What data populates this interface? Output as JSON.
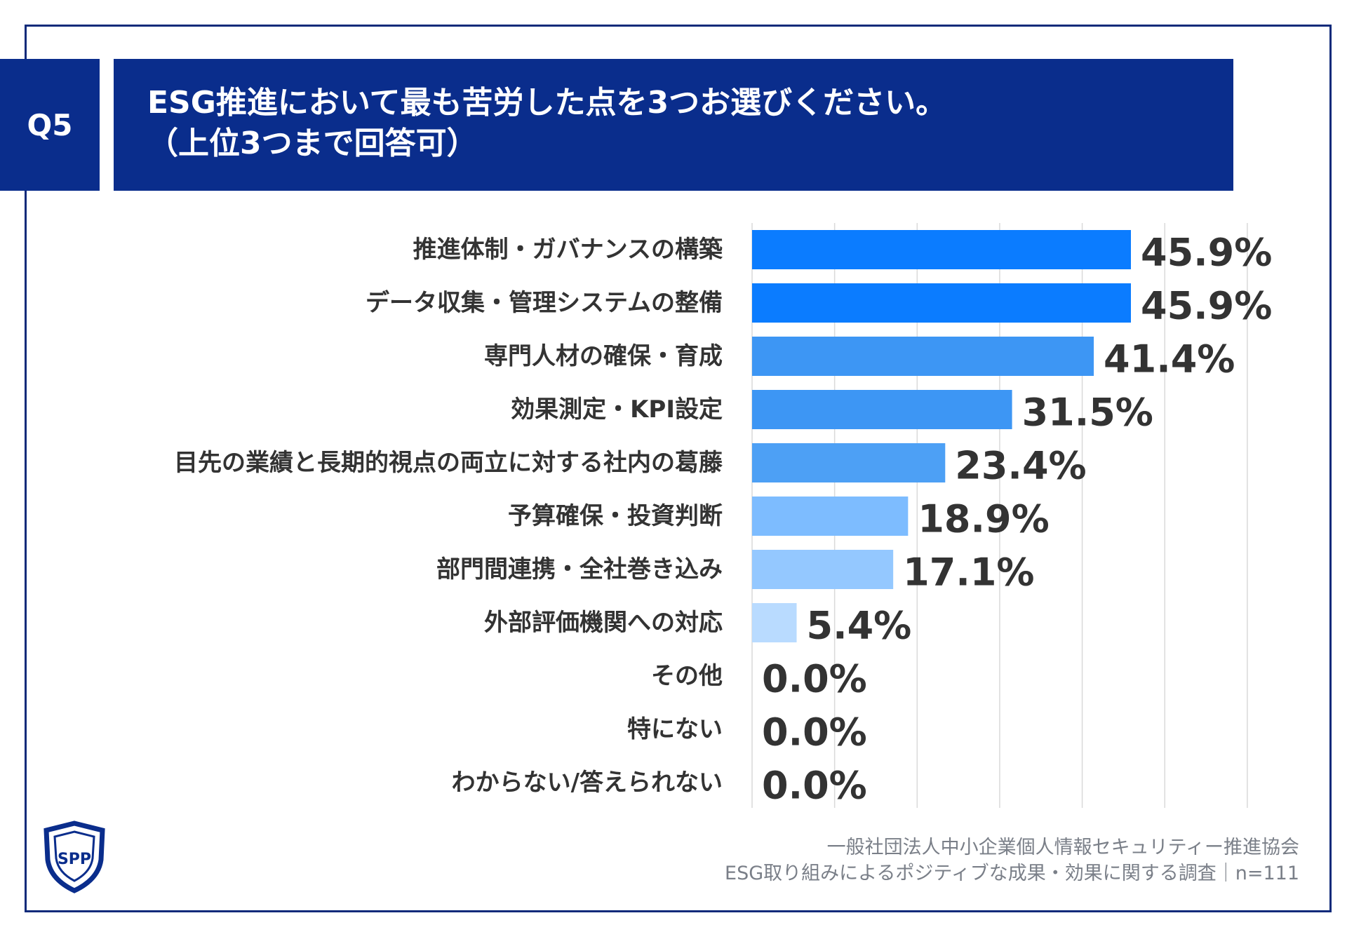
{
  "question": {
    "badge": "Q5",
    "line1": "ESG推進において最も苦労した点を3つお選びください。",
    "line2": "（上位3つまで回答可）"
  },
  "footer": {
    "org": "一般社団法人中小企業個人情報セキュリティー推進協会",
    "survey": "ESG取り組みによるポジティブな成果・効果に関する調査｜n=111"
  },
  "logo": {
    "icon": "spp-shield-logo",
    "text": "SPP"
  },
  "colors": {
    "header_bg": "#0a2d8c",
    "frame": "#0e2a7a",
    "bar_shades": [
      "#0b7cff",
      "#0b7cff",
      "#3d96f4",
      "#3d96f4",
      "#4da0f5",
      "#7dbcff",
      "#94c8ff",
      "#b9dbff"
    ]
  },
  "chart_data": {
    "type": "bar",
    "orientation": "horizontal",
    "categories": [
      "推進体制・ガバナンスの構築",
      "データ収集・管理システムの整備",
      "専門人材の確保・育成",
      "効果測定・KPI設定",
      "目先の業績と長期的視点の両立に対する社内の葛藤",
      "予算確保・投資判断",
      "部門間連携・全社巻き込み",
      "外部評価機関への対応",
      "その他",
      "特にない",
      "わからない/答えられない"
    ],
    "values": [
      45.9,
      45.9,
      41.4,
      31.5,
      23.4,
      18.9,
      17.1,
      5.4,
      0.0,
      0.0,
      0.0
    ],
    "value_labels": [
      "45.9%",
      "45.9%",
      "41.4%",
      "31.5%",
      "23.4%",
      "18.9%",
      "17.1%",
      "5.4%",
      "0.0%",
      "0.0%",
      "0.0%"
    ],
    "xlim": [
      0,
      60
    ],
    "grid": true
  }
}
